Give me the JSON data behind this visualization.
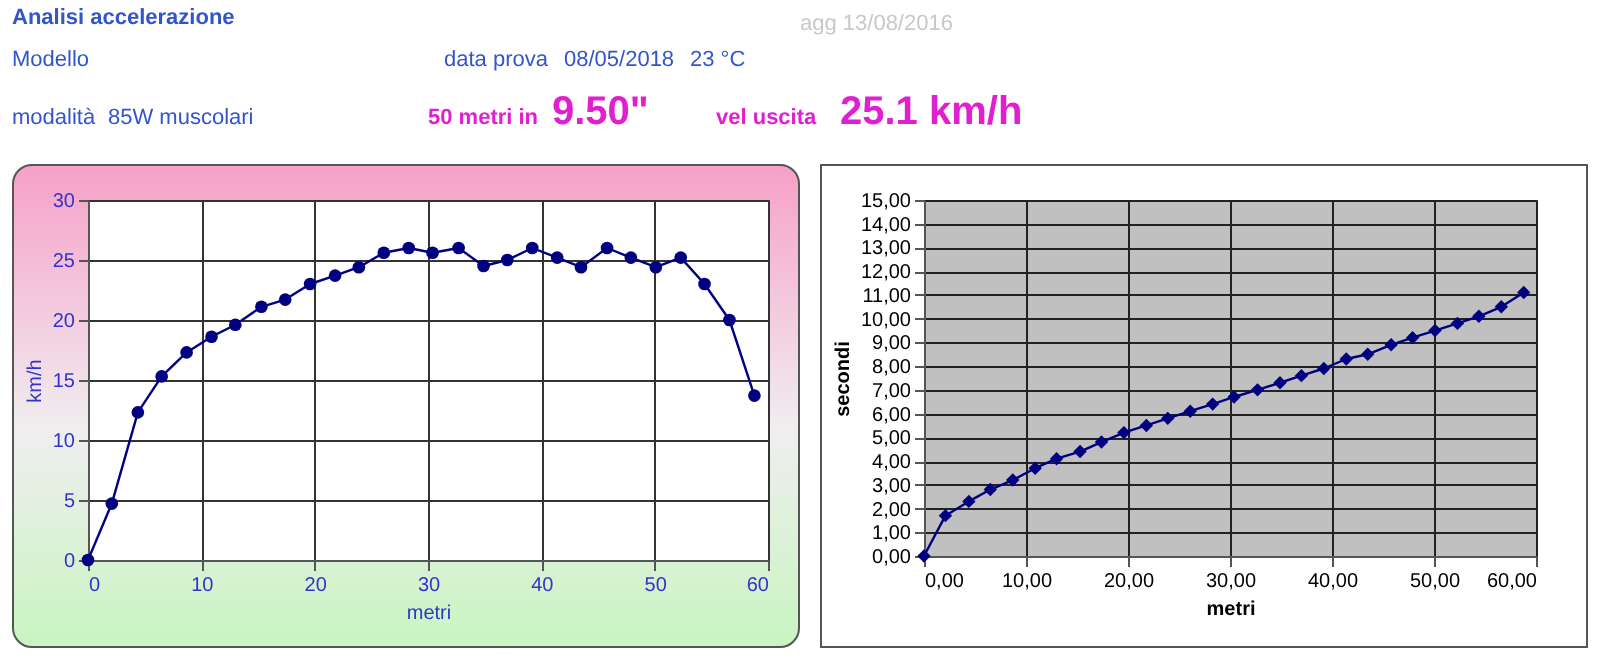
{
  "chart_data": [
    {
      "type": "other",
      "title": "Analisi accelerazione",
      "annotations": [
        "agg 13/08/2016",
        "Modello",
        "data prova",
        "08/05/2018",
        "23 °C",
        "modalità",
        "85W muscolari",
        "50 metri in",
        "9.50\"",
        "vel uscita",
        "25.1 km/h"
      ]
    },
    {
      "type": "line",
      "xlabel": "metri",
      "ylabel": "km/h",
      "x": [
        0,
        2.1,
        4.4,
        6.5,
        8.7,
        10.9,
        13.0,
        15.3,
        17.4,
        19.6,
        21.8,
        23.9,
        26.1,
        28.3,
        30.4,
        32.7,
        34.9,
        37.0,
        39.2,
        41.4,
        43.5,
        45.8,
        47.9,
        50.1,
        52.3,
        54.4,
        56.6,
        58.8
      ],
      "series": [
        {
          "color": "#000080",
          "values": [
            0,
            4.7,
            12.3,
            15.3,
            17.3,
            18.6,
            19.6,
            21.1,
            21.7,
            23.0,
            23.7,
            24.4,
            25.6,
            26.0,
            25.6,
            26.0,
            24.5,
            25.0,
            26.0,
            25.2,
            24.4,
            26.0,
            25.2,
            24.4,
            25.2,
            23.0,
            20.0,
            13.7
          ]
        }
      ],
      "xlim": [
        0,
        60
      ],
      "xticks": [
        0,
        10,
        20,
        30,
        40,
        50,
        60
      ],
      "ylim": [
        0,
        30
      ],
      "yticks": [
        0,
        5,
        10,
        15,
        20,
        25,
        30
      ],
      "grid": true,
      "marker": "circle",
      "line_style": "solid"
    },
    {
      "type": "line",
      "xlabel": "metri",
      "ylabel": "secondi",
      "x": [
        0,
        2.1,
        4.4,
        6.5,
        8.7,
        10.9,
        13.0,
        15.3,
        17.4,
        19.6,
        21.8,
        23.9,
        26.1,
        28.3,
        30.4,
        32.7,
        34.9,
        37.0,
        39.2,
        41.4,
        43.5,
        45.8,
        47.9,
        50.1,
        52.3,
        54.4,
        56.6,
        58.8
      ],
      "series": [
        {
          "color": "#000080",
          "values": [
            0,
            1.7,
            2.3,
            2.8,
            3.2,
            3.7,
            4.1,
            4.4,
            4.8,
            5.2,
            5.5,
            5.8,
            6.1,
            6.4,
            6.7,
            7.0,
            7.3,
            7.6,
            7.9,
            8.3,
            8.5,
            8.9,
            9.2,
            9.5,
            9.8,
            10.1,
            10.5,
            11.1
          ]
        }
      ],
      "xlim": [
        0,
        60
      ],
      "xticks": [
        {
          "value": 0,
          "label": "0,00"
        },
        {
          "value": 10,
          "label": "10,00"
        },
        {
          "value": 20,
          "label": "20,00"
        },
        {
          "value": 30,
          "label": "30,00"
        },
        {
          "value": 40,
          "label": "40,00"
        },
        {
          "value": 50,
          "label": "50,00"
        },
        {
          "value": 60,
          "label": "60,00"
        }
      ],
      "ylim": [
        0,
        15
      ],
      "yticks": [
        {
          "value": 0,
          "label": "0,00"
        },
        {
          "value": 1,
          "label": "1,00"
        },
        {
          "value": 2,
          "label": "2,00"
        },
        {
          "value": 3,
          "label": "3,00"
        },
        {
          "value": 4,
          "label": "4,00"
        },
        {
          "value": 5,
          "label": "5,00"
        },
        {
          "value": 6,
          "label": "6,00"
        },
        {
          "value": 7,
          "label": "7,00"
        },
        {
          "value": 8,
          "label": "8,00"
        },
        {
          "value": 9,
          "label": "9,00"
        },
        {
          "value": 10,
          "label": "10,00"
        },
        {
          "value": 11,
          "label": "11,00"
        },
        {
          "value": 12,
          "label": "12,00"
        },
        {
          "value": 13,
          "label": "13,00"
        },
        {
          "value": 14,
          "label": "14,00"
        },
        {
          "value": 15,
          "label": "15,00"
        }
      ],
      "grid": true,
      "marker": "diamond",
      "line_style": "solid"
    }
  ]
}
